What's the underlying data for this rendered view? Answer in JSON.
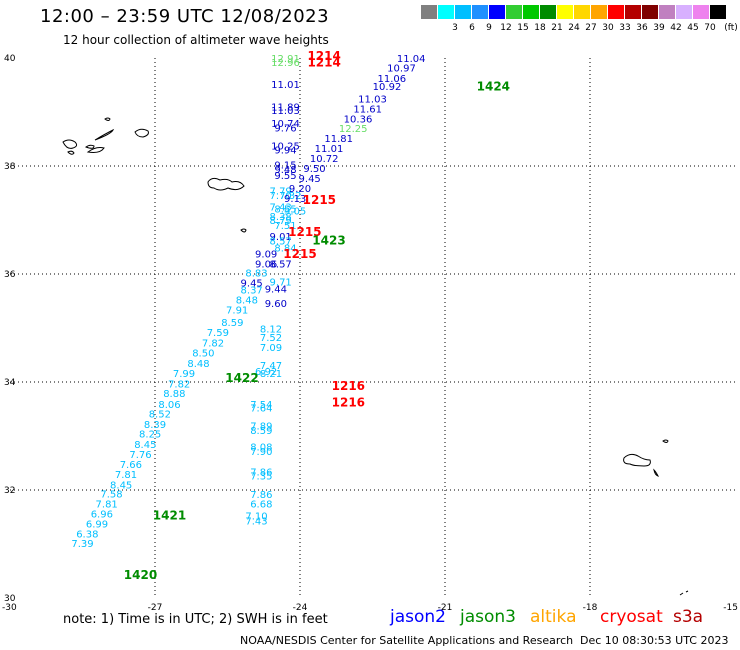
{
  "header": {
    "title": "12:00 – 23:59 UTC 12/08/2023",
    "subtitle": "12 hour collection of altimeter wave heights"
  },
  "legend": {
    "unit": "(ft)",
    "bins": [
      {
        "label": "",
        "color": "#808080"
      },
      {
        "label": "3",
        "color": "#00ffff"
      },
      {
        "label": "6",
        "color": "#00bfff"
      },
      {
        "label": "9",
        "color": "#1e90ff"
      },
      {
        "label": "12",
        "color": "#0000ff"
      },
      {
        "label": "15",
        "color": "#32cd32"
      },
      {
        "label": "18",
        "color": "#00c800"
      },
      {
        "label": "21",
        "color": "#008c00"
      },
      {
        "label": "24",
        "color": "#ffff00"
      },
      {
        "label": "27",
        "color": "#ffd700"
      },
      {
        "label": "30",
        "color": "#ffa500"
      },
      {
        "label": "33",
        "color": "#ff0000"
      },
      {
        "label": "36",
        "color": "#b40000"
      },
      {
        "label": "39",
        "color": "#800000"
      },
      {
        "label": "42",
        "color": "#c080c0"
      },
      {
        "label": "45",
        "color": "#d8b0ff"
      },
      {
        "label": "70",
        "color": "#ee82ee"
      },
      {
        "label": "",
        "color": "#000000"
      }
    ]
  },
  "map": {
    "lon_range": [
      -30,
      -15
    ],
    "lat_range": [
      30,
      40
    ],
    "lon_ticks": [
      "-30",
      "-27",
      "-24",
      "-21",
      "-18",
      "-15"
    ],
    "lat_ticks": [
      "40",
      "38",
      "36",
      "34",
      "32",
      "30"
    ],
    "grid": true
  },
  "colors": {
    "jason2": "#0000ff",
    "jason3": "#008c00",
    "altika": "#ffa500",
    "cryosat": "#ff0000",
    "s3a": "#b40000",
    "light_blue": "#00bfff",
    "dark_blue": "#0000c8",
    "light_green": "#66dd66"
  },
  "measurements": [
    {
      "lon": -24.3,
      "lat": 39.93,
      "value": "12.91",
      "color": "#66dd66"
    },
    {
      "lon": -24.3,
      "lat": 39.85,
      "value": "12.96",
      "color": "#66dd66"
    },
    {
      "lon": -24.3,
      "lat": 39.44,
      "value": "11.01",
      "color": "#0000c8"
    },
    {
      "lon": -24.3,
      "lat": 39.03,
      "value": "11.89",
      "color": "#0000c8"
    },
    {
      "lon": -24.3,
      "lat": 38.96,
      "value": "11.03",
      "color": "#0000c8"
    },
    {
      "lon": -24.3,
      "lat": 38.72,
      "value": "10.74",
      "color": "#0000c8"
    },
    {
      "lon": -24.3,
      "lat": 38.64,
      "value": "9.76",
      "color": "#0000c8"
    },
    {
      "lon": -24.3,
      "lat": 38.31,
      "value": "10.25",
      "color": "#0000c8"
    },
    {
      "lon": -24.3,
      "lat": 38.23,
      "value": "9.94",
      "color": "#0000c8"
    },
    {
      "lon": -24.3,
      "lat": 37.95,
      "value": "9.15",
      "color": "#0000c8"
    },
    {
      "lon": -24.3,
      "lat": 37.87,
      "value": "9.48",
      "color": "#0000c8"
    },
    {
      "lon": -24.3,
      "lat": 37.76,
      "value": "9.55",
      "color": "#0000c8"
    },
    {
      "lon": -24.4,
      "lat": 37.47,
      "value": "7.79",
      "color": "#00bfff"
    },
    {
      "lon": -24.4,
      "lat": 37.39,
      "value": "7.70",
      "color": "#00bfff"
    },
    {
      "lon": -24.2,
      "lat": 37.39,
      "value": "7.32",
      "color": "#00bfff"
    },
    {
      "lon": -24.4,
      "lat": 37.18,
      "value": "7.43",
      "color": "#00bfff"
    },
    {
      "lon": -24.1,
      "lat": 37.1,
      "value": "9.05",
      "color": "#00bfff"
    },
    {
      "lon": -24.4,
      "lat": 37.0,
      "value": "8.38",
      "color": "#00bfff"
    },
    {
      "lon": -24.4,
      "lat": 36.93,
      "value": "8.79",
      "color": "#00bfff"
    },
    {
      "lon": -24.3,
      "lat": 36.83,
      "value": "7.51",
      "color": "#00bfff"
    },
    {
      "lon": -24.4,
      "lat": 36.63,
      "value": "9.01",
      "color": "#0000c8"
    },
    {
      "lon": -24.4,
      "lat": 36.55,
      "value": "8.57",
      "color": "#00bfff"
    },
    {
      "lon": -24.3,
      "lat": 36.42,
      "value": "8.84",
      "color": "#00bfff"
    },
    {
      "lon": -24.7,
      "lat": 36.31,
      "value": "9.09",
      "color": "#0000c8"
    },
    {
      "lon": -24.7,
      "lat": 36.12,
      "value": "9.06",
      "color": "#0000c8"
    },
    {
      "lon": -24.4,
      "lat": 36.12,
      "value": "8.57",
      "color": "#0000c8"
    },
    {
      "lon": -24.9,
      "lat": 35.95,
      "value": "8.83",
      "color": "#00bfff"
    },
    {
      "lon": -24.4,
      "lat": 35.79,
      "value": "9.71",
      "color": "#00bfff"
    },
    {
      "lon": -25.0,
      "lat": 35.77,
      "value": "9.45",
      "color": "#0000c8"
    },
    {
      "lon": -24.5,
      "lat": 35.66,
      "value": "9.44",
      "color": "#0000c8"
    },
    {
      "lon": -25.0,
      "lat": 35.64,
      "value": "8.37",
      "color": "#00bfff"
    },
    {
      "lon": -25.1,
      "lat": 35.45,
      "value": "8.48",
      "color": "#00bfff"
    },
    {
      "lon": -24.5,
      "lat": 35.39,
      "value": "9.60",
      "color": "#0000c8"
    },
    {
      "lon": -25.3,
      "lat": 35.27,
      "value": "7.91",
      "color": "#00bfff"
    },
    {
      "lon": -25.4,
      "lat": 35.04,
      "value": "8.59",
      "color": "#00bfff"
    },
    {
      "lon": -24.6,
      "lat": 34.92,
      "value": "8.12",
      "color": "#00bfff"
    },
    {
      "lon": -25.7,
      "lat": 34.85,
      "value": "7.59",
      "color": "#00bfff"
    },
    {
      "lon": -24.6,
      "lat": 34.76,
      "value": "7.52",
      "color": "#00bfff"
    },
    {
      "lon": -25.8,
      "lat": 34.66,
      "value": "7.82",
      "color": "#00bfff"
    },
    {
      "lon": -24.6,
      "lat": 34.57,
      "value": "7.09",
      "color": "#00bfff"
    },
    {
      "lon": -26.0,
      "lat": 34.47,
      "value": "8.50",
      "color": "#00bfff"
    },
    {
      "lon": -26.1,
      "lat": 34.28,
      "value": "8.48",
      "color": "#00bfff"
    },
    {
      "lon": -24.6,
      "lat": 34.24,
      "value": "7.47",
      "color": "#00bfff"
    },
    {
      "lon": -24.7,
      "lat": 34.13,
      "value": "6.92",
      "color": "#00bfff"
    },
    {
      "lon": -24.6,
      "lat": 34.09,
      "value": "8.21",
      "color": "#00bfff"
    },
    {
      "lon": -26.4,
      "lat": 34.09,
      "value": "7.99",
      "color": "#00bfff"
    },
    {
      "lon": -26.5,
      "lat": 33.9,
      "value": "7.82",
      "color": "#00bfff"
    },
    {
      "lon": -26.6,
      "lat": 33.72,
      "value": "8.88",
      "color": "#00bfff"
    },
    {
      "lon": -26.7,
      "lat": 33.52,
      "value": "8.06",
      "color": "#00bfff"
    },
    {
      "lon": -24.8,
      "lat": 33.52,
      "value": "7.54",
      "color": "#00bfff"
    },
    {
      "lon": -24.8,
      "lat": 33.45,
      "value": "7.64",
      "color": "#00bfff"
    },
    {
      "lon": -26.9,
      "lat": 33.34,
      "value": "8.52",
      "color": "#00bfff"
    },
    {
      "lon": -27.0,
      "lat": 33.15,
      "value": "8.39",
      "color": "#00bfff"
    },
    {
      "lon": -24.8,
      "lat": 33.12,
      "value": "7.89",
      "color": "#00bfff"
    },
    {
      "lon": -24.8,
      "lat": 33.04,
      "value": "8.59",
      "color": "#00bfff"
    },
    {
      "lon": -27.1,
      "lat": 32.97,
      "value": "8.25",
      "color": "#00bfff"
    },
    {
      "lon": -27.2,
      "lat": 32.78,
      "value": "8.45",
      "color": "#00bfff"
    },
    {
      "lon": -24.8,
      "lat": 32.73,
      "value": "8.08",
      "color": "#00bfff"
    },
    {
      "lon": -24.8,
      "lat": 32.65,
      "value": "7.90",
      "color": "#00bfff"
    },
    {
      "lon": -27.3,
      "lat": 32.59,
      "value": "7.76",
      "color": "#00bfff"
    },
    {
      "lon": -27.5,
      "lat": 32.41,
      "value": "7.66",
      "color": "#00bfff"
    },
    {
      "lon": -27.6,
      "lat": 32.22,
      "value": "7.81",
      "color": "#00bfff"
    },
    {
      "lon": -24.8,
      "lat": 32.27,
      "value": "7.86",
      "color": "#00bfff"
    },
    {
      "lon": -24.8,
      "lat": 32.19,
      "value": "7.35",
      "color": "#00bfff"
    },
    {
      "lon": -27.7,
      "lat": 32.03,
      "value": "8.45",
      "color": "#00bfff"
    },
    {
      "lon": -27.9,
      "lat": 31.86,
      "value": "7.58",
      "color": "#00bfff"
    },
    {
      "lon": -24.8,
      "lat": 31.85,
      "value": "7.86",
      "color": "#00bfff"
    },
    {
      "lon": -28.0,
      "lat": 31.68,
      "value": "7.81",
      "color": "#00bfff"
    },
    {
      "lon": -24.8,
      "lat": 31.68,
      "value": "6.68",
      "color": "#00bfff"
    },
    {
      "lon": -28.1,
      "lat": 31.49,
      "value": "6.96",
      "color": "#00bfff"
    },
    {
      "lon": -24.9,
      "lat": 31.45,
      "value": "7.10",
      "color": "#00bfff"
    },
    {
      "lon": -28.2,
      "lat": 31.31,
      "value": "6.99",
      "color": "#00bfff"
    },
    {
      "lon": -24.9,
      "lat": 31.36,
      "value": "7.43",
      "color": "#00bfff"
    },
    {
      "lon": -28.4,
      "lat": 31.12,
      "value": "6.38",
      "color": "#00bfff"
    },
    {
      "lon": -28.5,
      "lat": 30.94,
      "value": "7.39",
      "color": "#00bfff"
    },
    {
      "lon": -21.7,
      "lat": 39.93,
      "value": "11.04",
      "color": "#0000c8"
    },
    {
      "lon": -21.9,
      "lat": 39.75,
      "value": "10.97",
      "color": "#0000c8"
    },
    {
      "lon": -22.1,
      "lat": 39.56,
      "value": "11.06",
      "color": "#0000c8"
    },
    {
      "lon": -22.2,
      "lat": 39.41,
      "value": "10.92",
      "color": "#0000c8"
    },
    {
      "lon": -22.5,
      "lat": 39.18,
      "value": "11.03",
      "color": "#0000c8"
    },
    {
      "lon": -22.6,
      "lat": 38.99,
      "value": "11.61",
      "color": "#0000c8"
    },
    {
      "lon": -22.8,
      "lat": 38.81,
      "value": "10.36",
      "color": "#0000c8"
    },
    {
      "lon": -22.9,
      "lat": 38.63,
      "value": "12.25",
      "color": "#66dd66"
    },
    {
      "lon": -23.2,
      "lat": 38.44,
      "value": "11.81",
      "color": "#0000c8"
    },
    {
      "lon": -23.4,
      "lat": 38.26,
      "value": "11.01",
      "color": "#0000c8"
    },
    {
      "lon": -23.5,
      "lat": 38.07,
      "value": "10.72",
      "color": "#0000c8"
    },
    {
      "lon": -23.7,
      "lat": 37.89,
      "value": "9.50",
      "color": "#0000c8"
    },
    {
      "lon": -23.8,
      "lat": 37.7,
      "value": "9.45",
      "color": "#0000c8"
    },
    {
      "lon": -24.0,
      "lat": 37.52,
      "value": "9.20",
      "color": "#0000c8"
    },
    {
      "lon": -24.1,
      "lat": 37.33,
      "value": "9.13",
      "color": "#0000c8"
    },
    {
      "lon": -24.3,
      "lat": 37.14,
      "value": "8.55",
      "color": "#00bfff"
    }
  ],
  "pass_times": [
    {
      "lon": -23.5,
      "lat": 39.96,
      "time": "1214",
      "color": "#ff0000"
    },
    {
      "lon": -23.5,
      "lat": 39.84,
      "time": "1214",
      "color": "#ff0000"
    },
    {
      "lon": -20.0,
      "lat": 39.4,
      "time": "1424",
      "color": "#008c00"
    },
    {
      "lon": -23.6,
      "lat": 37.3,
      "time": "1215",
      "color": "#ff0000"
    },
    {
      "lon": -23.9,
      "lat": 36.7,
      "time": "1215",
      "color": "#ff0000"
    },
    {
      "lon": -23.4,
      "lat": 36.55,
      "time": "1423",
      "color": "#008c00"
    },
    {
      "lon": -24.0,
      "lat": 36.3,
      "time": "1215",
      "color": "#ff0000"
    },
    {
      "lon": -25.2,
      "lat": 34.0,
      "time": "1422",
      "color": "#008c00"
    },
    {
      "lon": -23.0,
      "lat": 33.85,
      "time": "1216",
      "color": "#ff0000"
    },
    {
      "lon": -23.0,
      "lat": 33.55,
      "time": "1216",
      "color": "#ff0000"
    },
    {
      "lon": -26.7,
      "lat": 31.45,
      "time": "1421",
      "color": "#008c00"
    },
    {
      "lon": -27.3,
      "lat": 30.35,
      "time": "1420",
      "color": "#008c00"
    }
  ],
  "islands": [
    {
      "name": "flores-corvo",
      "shape": "large"
    },
    {
      "name": "azores-central",
      "shape": "medium"
    },
    {
      "name": "sao-miguel",
      "shape": "large"
    },
    {
      "name": "santa-maria",
      "shape": "small"
    },
    {
      "name": "madeira",
      "shape": "large"
    }
  ],
  "footer": {
    "note": "note:  1) Time is in UTC;  2) SWH is in feet",
    "satellites": [
      {
        "name": "jason2",
        "color": "#0000ff"
      },
      {
        "name": "jason3",
        "color": "#008c00"
      },
      {
        "name": "altika",
        "color": "#ffa500"
      },
      {
        "name": "cryosat",
        "color": "#ff0000"
      },
      {
        "name": "s3a",
        "color": "#b40000"
      }
    ],
    "credit": "NOAA/NESDIS Center for Satellite Applications and Research",
    "timestamp": "Dec 10 08:30:53 UTC 2023"
  }
}
